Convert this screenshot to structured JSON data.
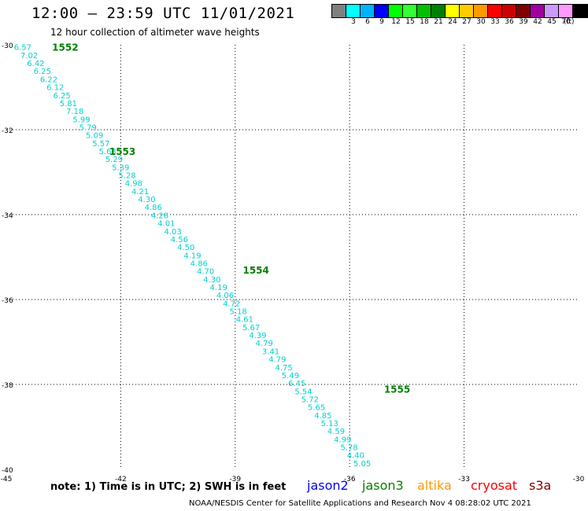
{
  "header": {
    "title": "12:00 – 23:59 UTC 11/01/2021",
    "subtitle": "12 hour collection of altimeter wave heights"
  },
  "legend": {
    "items": [
      {
        "label": "",
        "color": "#808080"
      },
      {
        "label": "3",
        "color": "#00ffff"
      },
      {
        "label": "6",
        "color": "#00b4ff"
      },
      {
        "label": "9",
        "color": "#0000ff"
      },
      {
        "label": "12",
        "color": "#00ff00"
      },
      {
        "label": "15",
        "color": "#33ff33"
      },
      {
        "label": "18",
        "color": "#00c000"
      },
      {
        "label": "21",
        "color": "#008000"
      },
      {
        "label": "24",
        "color": "#ffff00"
      },
      {
        "label": "27",
        "color": "#ffcc00"
      },
      {
        "label": "30",
        "color": "#ff9900"
      },
      {
        "label": "33",
        "color": "#ff0000"
      },
      {
        "label": "36",
        "color": "#cc0000"
      },
      {
        "label": "39",
        "color": "#800000"
      },
      {
        "label": "42",
        "color": "#a000a0"
      },
      {
        "label": "45",
        "color": "#cc99ff"
      },
      {
        "label": "70",
        "color": "#ff99ff"
      },
      {
        "label": "",
        "color": "#000000"
      }
    ],
    "unit": "(ft)"
  },
  "axes": {
    "lon_ticks": [
      {
        "label": "-45",
        "lon": -45
      },
      {
        "label": "-42",
        "lon": -42
      },
      {
        "label": "-39",
        "lon": -39
      },
      {
        "label": "-36",
        "lon": -36
      },
      {
        "label": "-33",
        "lon": -33
      },
      {
        "label": "-30",
        "lon": -30
      }
    ],
    "lat_ticks": [
      {
        "label": "-30",
        "lat": -30
      },
      {
        "label": "-32",
        "lat": -32
      },
      {
        "label": "-34",
        "lat": -34
      },
      {
        "label": "-36",
        "lat": -36
      },
      {
        "label": "-38",
        "lat": -38
      },
      {
        "label": "-40",
        "lat": -40
      }
    ],
    "lon_range": [
      -45,
      -30
    ],
    "lat_range": [
      -30,
      -40
    ]
  },
  "track": {
    "color": "#00d0d0",
    "start": {
      "lon": -44.8,
      "lat": -30.05
    },
    "end": {
      "lon": -35.9,
      "lat": -39.85
    },
    "values": [
      "6.57",
      "7.02",
      "6.42",
      "6.25",
      "6.22",
      "6.12",
      "6.25",
      "5.81",
      "7.18",
      "5.99",
      "5.79",
      "5.09",
      "5.57",
      "5.68",
      "5.29",
      "5.39",
      "5.28",
      "4.98",
      "4.21",
      "4.30",
      "4.86",
      "4.28",
      "4.01",
      "4.03",
      "4.56",
      "4.50",
      "4.19",
      "4.86",
      "4.70",
      "4.30",
      "4.19",
      "4.06",
      "4.72",
      "5.18",
      "4.61",
      "5.67",
      "4.39",
      "4.79",
      "3.41",
      "4.79",
      "4.75",
      "5.49",
      "6.45",
      "5.54",
      "5.72",
      "5.65",
      "4.85",
      "5.13",
      "4.59",
      "4.99",
      "5.78",
      "4.40",
      "5.05"
    ]
  },
  "passes": {
    "color": "#008000",
    "items": [
      {
        "label": "1552",
        "lon": -43.8,
        "lat": -30.05
      },
      {
        "label": "1553",
        "lon": -42.3,
        "lat": -32.5
      },
      {
        "label": "1554",
        "lon": -38.8,
        "lat": -35.3
      },
      {
        "label": "1555",
        "lon": -35.1,
        "lat": -38.1
      }
    ]
  },
  "footer": {
    "note": "note: 1) Time is in UTC; 2) SWH is in feet",
    "satellites": [
      {
        "label": "jason2",
        "color": "#0000ff"
      },
      {
        "label": "jason3",
        "color": "#008000"
      },
      {
        "label": "altika",
        "color": "#ff9900"
      },
      {
        "label": "cryosat",
        "color": "#ff0000"
      },
      {
        "label": "s3a",
        "color": "#800000"
      }
    ],
    "credit": "NOAA/NESDIS Center for Satellite Applications and Research    Nov  4 08:28:02 UTC 2021"
  }
}
